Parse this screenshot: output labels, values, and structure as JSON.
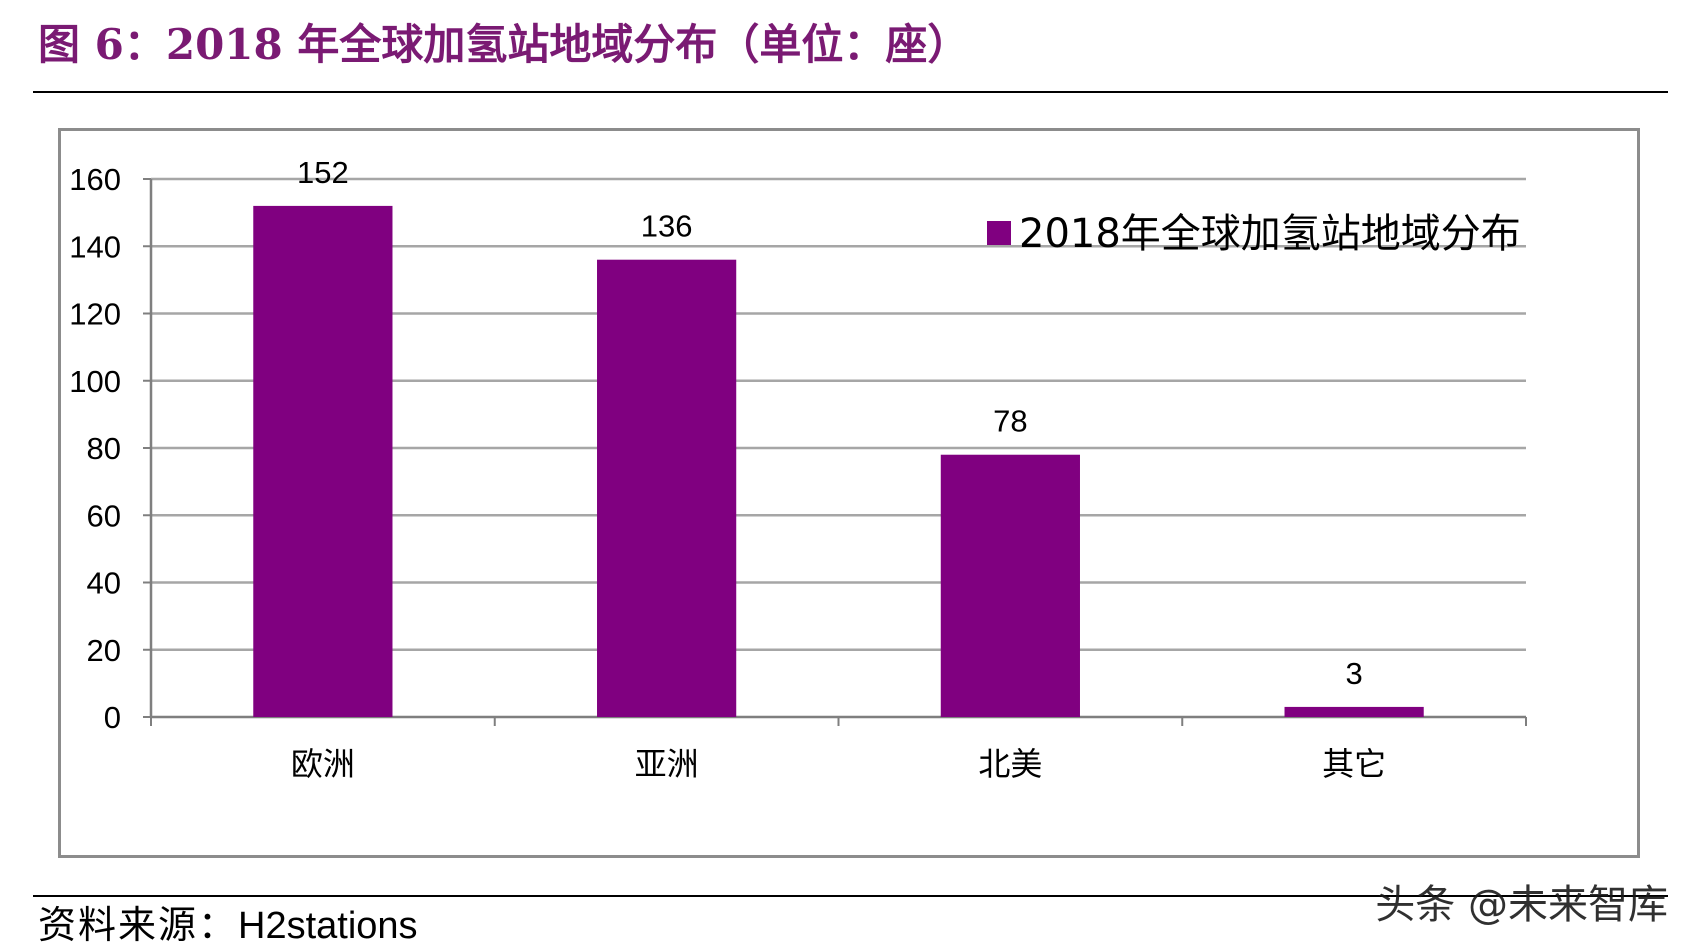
{
  "figure": {
    "title": "图 6：2018 年全球加氢站地域分布（单位：座）",
    "source_label": "资料来源：",
    "source_value": "H2stations",
    "watermark": "头条 @未来智库"
  },
  "chart_data": {
    "type": "bar",
    "categories": [
      "欧洲",
      "亚洲",
      "北美",
      "其它"
    ],
    "series": [
      {
        "name": "2018年全球加氢站地域分布",
        "values": [
          152,
          136,
          78,
          3
        ]
      }
    ],
    "data_labels": [
      "152",
      "136",
      "78",
      "3"
    ],
    "ylim": [
      0,
      160
    ],
    "yticks": [
      0,
      20,
      40,
      60,
      80,
      100,
      120,
      140,
      160
    ],
    "grid": true,
    "legend_position": "top-right",
    "bar_color": "#800080",
    "gridline_color": "#a6a6a6",
    "frame_color": "#8c8c8c"
  }
}
